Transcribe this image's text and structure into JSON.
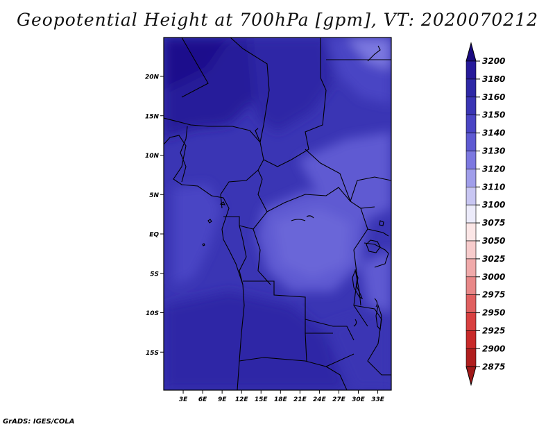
{
  "title": "Geopotential Height at 700hPa [gpm], VT: 2020070212",
  "footer": "GrADS: IGES/COLA",
  "map": {
    "lat_ticks": [
      {
        "value": 20,
        "label": "20N"
      },
      {
        "value": 15,
        "label": "15N"
      },
      {
        "value": 10,
        "label": "10N"
      },
      {
        "value": 5,
        "label": "5N"
      },
      {
        "value": 0,
        "label": "EQ"
      },
      {
        "value": -5,
        "label": "5S"
      },
      {
        "value": -10,
        "label": "10S"
      },
      {
        "value": -15,
        "label": "15S"
      }
    ],
    "lon_ticks": [
      {
        "value": 3,
        "label": "3E"
      },
      {
        "value": 6,
        "label": "6E"
      },
      {
        "value": 9,
        "label": "9E"
      },
      {
        "value": 12,
        "label": "12E"
      },
      {
        "value": 15,
        "label": "15E"
      },
      {
        "value": 18,
        "label": "18E"
      },
      {
        "value": 21,
        "label": "21E"
      },
      {
        "value": 24,
        "label": "24E"
      },
      {
        "value": 27,
        "label": "27E"
      },
      {
        "value": 30,
        "label": "30E"
      },
      {
        "value": 33,
        "label": "33E"
      }
    ]
  },
  "colorbar": {
    "levels": [
      {
        "label": "3200",
        "color": "#1e0f8c"
      },
      {
        "label": "3180",
        "color": "#261a9a"
      },
      {
        "label": "3160",
        "color": "#2e28a6"
      },
      {
        "label": "3150",
        "color": "#3a35b4"
      },
      {
        "label": "3140",
        "color": "#4a45c4"
      },
      {
        "label": "3130",
        "color": "#5e5ad2"
      },
      {
        "label": "3120",
        "color": "#7c78e0"
      },
      {
        "label": "3110",
        "color": "#a09eea"
      },
      {
        "label": "3100",
        "color": "#c8c6f2"
      },
      {
        "label": "3075",
        "color": "#ecebfa"
      },
      {
        "label": "3050",
        "color": "#fbe6e6"
      },
      {
        "label": "3025",
        "color": "#f7cccc"
      },
      {
        "label": "3000",
        "color": "#f0aaaa"
      },
      {
        "label": "2975",
        "color": "#e88888"
      },
      {
        "label": "2950",
        "color": "#e06060"
      },
      {
        "label": "2925",
        "color": "#d84040"
      },
      {
        "label": "2900",
        "color": "#c82a2a"
      },
      {
        "label": "2875",
        "color": "#b01e1e"
      }
    ],
    "top_color": "#1a0a80",
    "bottom_color": "#a01818"
  }
}
